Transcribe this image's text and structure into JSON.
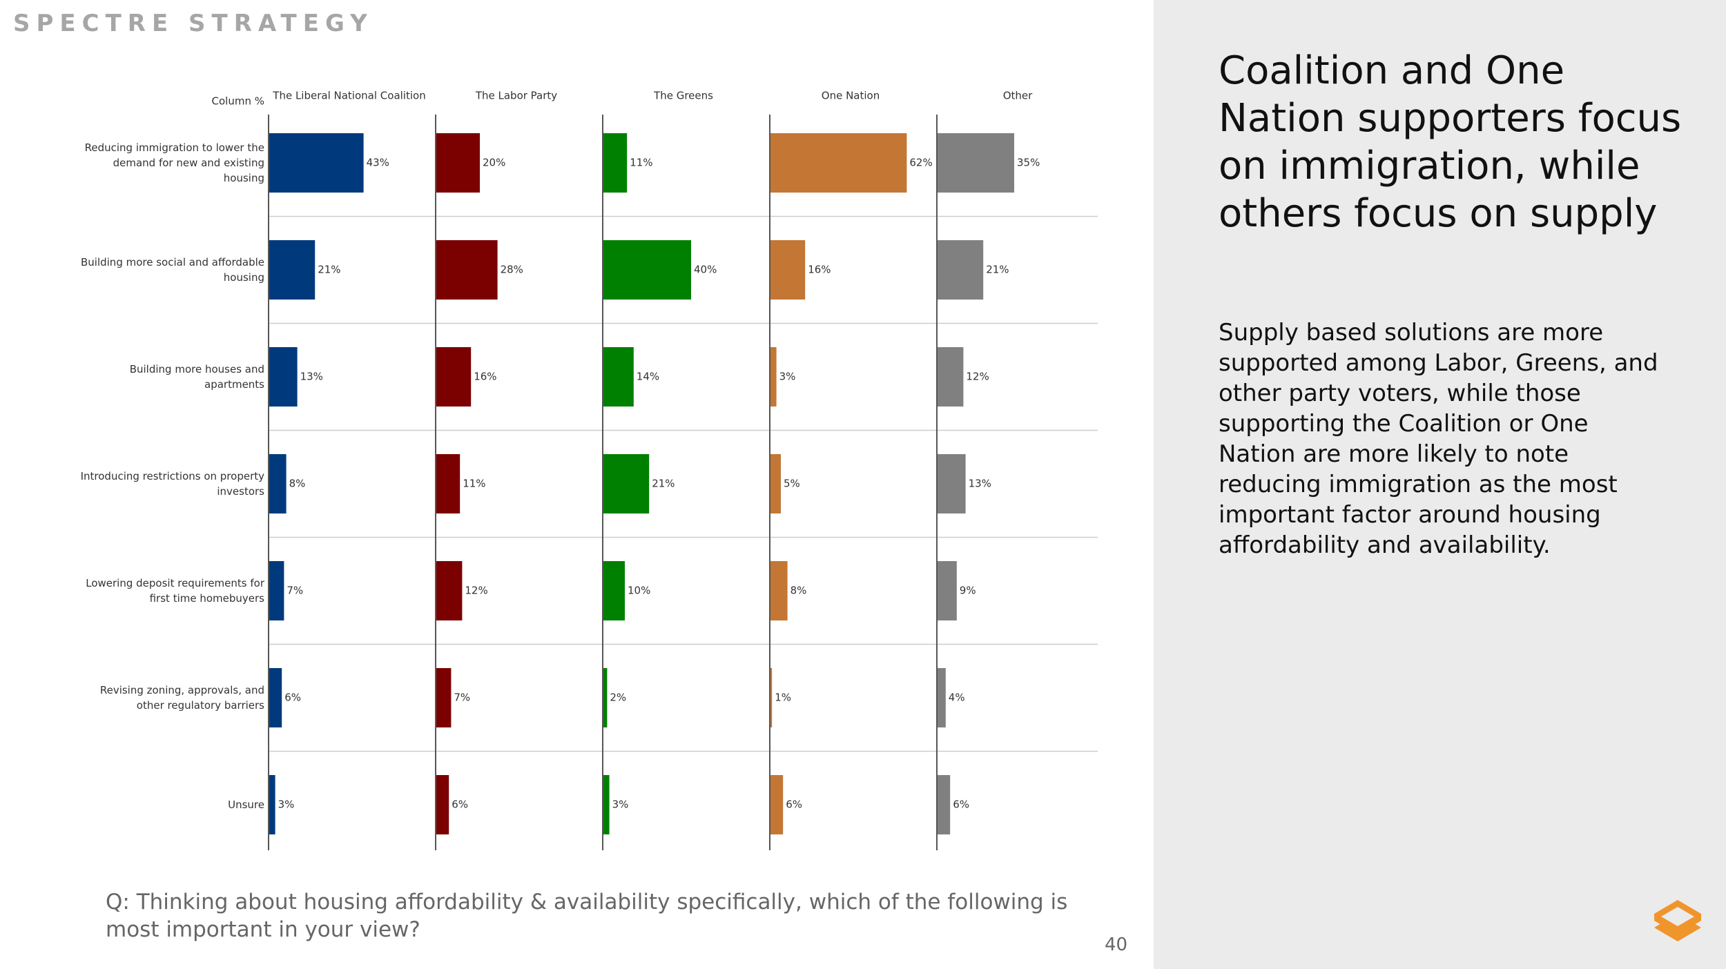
{
  "brand": "SPECTRE STRATEGY",
  "panel": {
    "title": "Coalition and One Nation supporters focus on immigration, while others focus on supply",
    "body": "Supply based solutions are more supported among Labor, Greens, and other party voters, while those supporting the Coalition or One Nation are more likely to note reducing immigration as the most important factor around housing affordability and availability."
  },
  "chart_data": {
    "type": "bar",
    "orientation": "horizontal",
    "corner_label": "Column %",
    "categories": [
      "Reducing immigration to lower the demand for new and existing housing",
      "Building more social and affordable housing",
      "Building more houses and apartments",
      "Introducing restrictions on property investors",
      "Lowering deposit requirements for first time homebuyers",
      "Revising zoning, approvals, and other regulatory barriers",
      "Unsure"
    ],
    "series": [
      {
        "name": "The Liberal National Coalition",
        "color": "#003a7d",
        "values": [
          43,
          21,
          13,
          8,
          7,
          6,
          3
        ],
        "value_labels": [
          "43%",
          "21%",
          "13%",
          "8%",
          "7%",
          "6%",
          "3%"
        ]
      },
      {
        "name": "The Labor Party",
        "color": "#7b0000",
        "values": [
          20,
          28,
          16,
          11,
          12,
          7,
          6
        ],
        "value_labels": [
          "20%",
          "28%",
          "16%",
          "11%",
          "12%",
          "7%",
          "6%"
        ]
      },
      {
        "name": "The Greens",
        "color": "#008000",
        "values": [
          11,
          40,
          14,
          21,
          10,
          2,
          3
        ],
        "value_labels": [
          "11%",
          "40%",
          "14%",
          "21%",
          "10%",
          "2%",
          "3%"
        ]
      },
      {
        "name": "One Nation",
        "color": "#c47634",
        "values": [
          62,
          16,
          3,
          5,
          8,
          1,
          6
        ],
        "value_labels": [
          "62%",
          "16%",
          "3%",
          "5%",
          "8%",
          "1%",
          "6%"
        ]
      },
      {
        "name": "Other",
        "color": "#808080",
        "values": [
          35,
          21,
          12,
          13,
          9,
          4,
          6
        ],
        "value_labels": [
          "35%",
          "21%",
          "12%",
          "13%",
          "9%",
          "4%",
          "6%"
        ]
      }
    ]
  },
  "footnote": "Q: Thinking about housing affordability & availability specifically, which of the following is most important in your view?",
  "page_number": "40"
}
